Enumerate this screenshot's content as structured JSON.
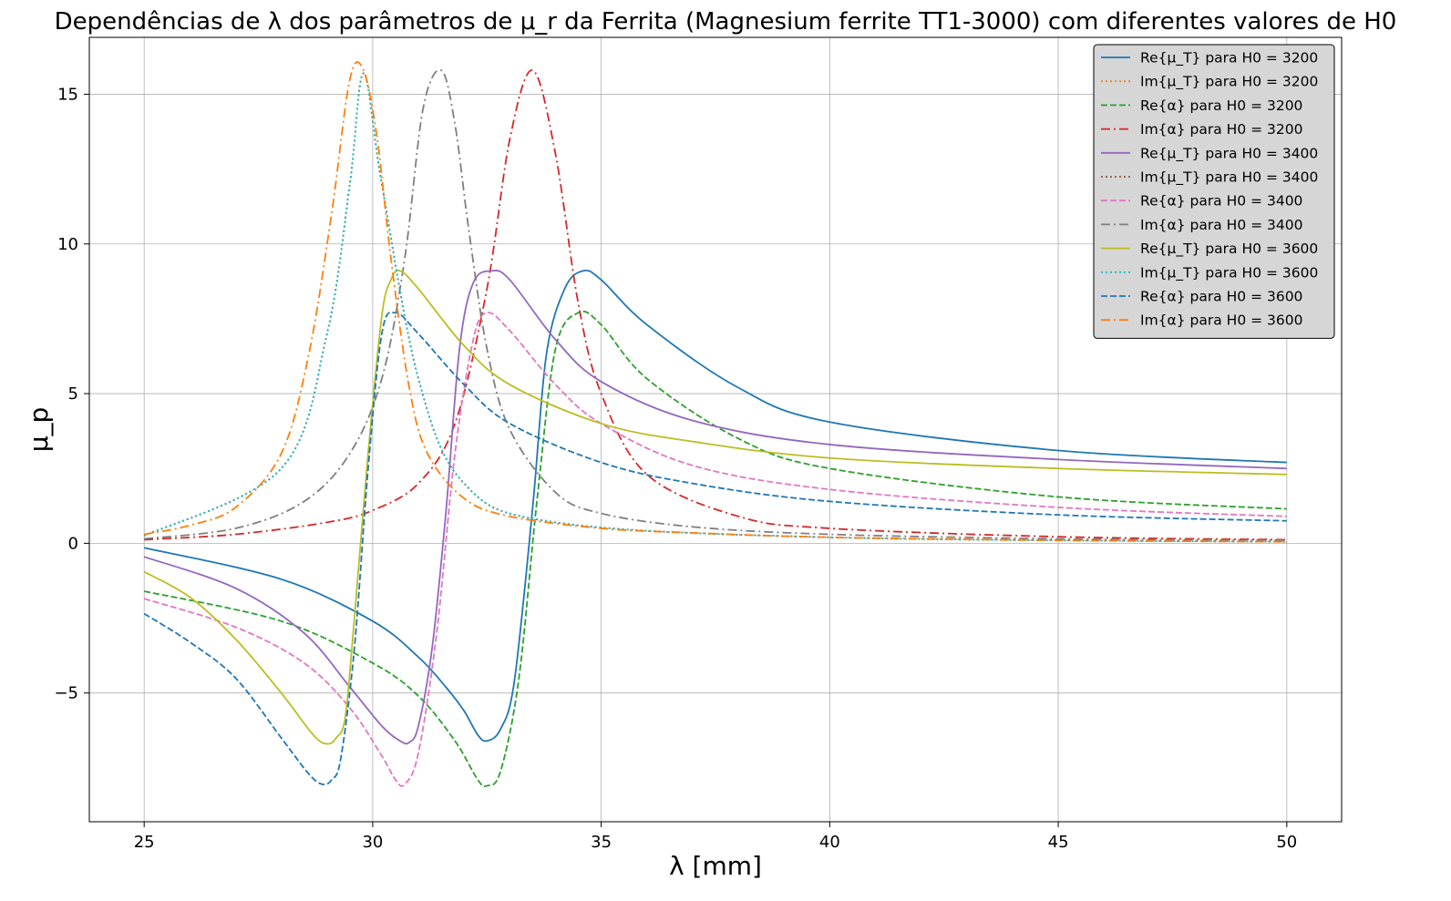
{
  "chart_data": {
    "type": "line",
    "title": "Dependências de λ dos parâmetros de μ_r da Ferrita (Magnesium ferrite TT1-3000) com diferentes valores de H0",
    "xlabel": "λ [mm]",
    "ylabel": "μ_p",
    "xlim": [
      23.8,
      51.2
    ],
    "ylim": [
      -9.3,
      16.9
    ],
    "xticks": [
      25,
      30,
      35,
      40,
      45,
      50
    ],
    "yticks": [
      -5,
      0,
      5,
      10,
      15
    ],
    "xtick_labels": [
      "25",
      "30",
      "35",
      "40",
      "45",
      "50"
    ],
    "ytick_labels": [
      "−5",
      "0",
      "5",
      "10",
      "15"
    ],
    "grid": true,
    "legend_position": "top-right",
    "series": [
      {
        "name": "Re{μ_T} para H0 = 3200",
        "color": "#1f77b4",
        "style": "solid",
        "x": [
          25,
          28,
          30,
          31,
          31.6,
          32,
          32.3,
          32.5,
          32.8,
          33.1,
          33.5,
          33.8,
          34.2,
          34.6,
          35,
          36,
          38,
          40,
          45,
          50
        ],
        "y": [
          -0.15,
          -1.2,
          -2.6,
          -3.8,
          -4.8,
          -5.6,
          -6.4,
          -6.6,
          -6.2,
          -4.6,
          1.2,
          6.3,
          8.5,
          9.1,
          8.8,
          7.3,
          5.2,
          4.05,
          3.1,
          2.7
        ]
      },
      {
        "name": "Im{μ_T} para H0 = 3200",
        "color": "#ff7f0e",
        "style": "dotted",
        "x": [
          25,
          28,
          29,
          29.5,
          29.8,
          30.2,
          31,
          32,
          34,
          40,
          50
        ],
        "y": [
          0.25,
          2.5,
          7.0,
          12.0,
          15.7,
          12.0,
          5.5,
          2.0,
          0.7,
          0.2,
          0.05
        ]
      },
      {
        "name": "Re{α} para H0 = 3200",
        "color": "#2ca02c",
        "style": "dashed",
        "x": [
          25,
          28,
          30,
          31,
          31.8,
          32.3,
          32.5,
          32.8,
          33.2,
          33.6,
          34,
          34.5,
          35,
          36,
          38,
          40,
          45,
          50
        ],
        "y": [
          -1.6,
          -2.6,
          -4.0,
          -5.1,
          -6.6,
          -7.9,
          -8.1,
          -7.6,
          -4.5,
          1.5,
          6.5,
          7.7,
          7.3,
          5.5,
          3.5,
          2.5,
          1.55,
          1.15
        ]
      },
      {
        "name": "Im{α} para H0 = 3200",
        "color": "#d62728",
        "style": "dashdot",
        "x": [
          25,
          27,
          29,
          30,
          31,
          31.8,
          32.5,
          33,
          33.5,
          34,
          34.5,
          35,
          36,
          38,
          40,
          45,
          50
        ],
        "y": [
          0.12,
          0.3,
          0.7,
          1.1,
          2.0,
          4.0,
          8.5,
          13.5,
          15.8,
          13.0,
          8.0,
          5.0,
          2.3,
          0.9,
          0.5,
          0.22,
          0.12
        ]
      },
      {
        "name": "Re{μ_T} para H0 = 3400",
        "color": "#9467bd",
        "style": "solid",
        "x": [
          25,
          27,
          28.5,
          29.5,
          30.2,
          30.6,
          30.8,
          31.0,
          31.3,
          31.6,
          31.9,
          32.2,
          32.6,
          33,
          34,
          35,
          37,
          40,
          45,
          50
        ],
        "y": [
          -0.45,
          -1.5,
          -3.0,
          -4.8,
          -6.1,
          -6.6,
          -6.65,
          -6.1,
          -3.5,
          1.0,
          6.5,
          8.7,
          9.1,
          8.8,
          6.8,
          5.4,
          4.1,
          3.3,
          2.8,
          2.5
        ]
      },
      {
        "name": "Im{μ_T} para H0 = 3400",
        "color": "#8c564b",
        "style": "dotted",
        "x": [
          25,
          28,
          29,
          29.5,
          29.8,
          30.2,
          31,
          32,
          34,
          40,
          50
        ],
        "y": [
          0.25,
          2.5,
          7.0,
          12.0,
          15.7,
          12.0,
          5.5,
          2.0,
          0.7,
          0.2,
          0.05
        ]
      },
      {
        "name": "Re{α} para H0 = 3400",
        "color": "#e377c2",
        "style": "dashed",
        "x": [
          25,
          27,
          28.5,
          29.5,
          30.2,
          30.5,
          30.7,
          31.0,
          31.4,
          31.8,
          32.2,
          32.5,
          33,
          34,
          35,
          37,
          40,
          45,
          50
        ],
        "y": [
          -1.85,
          -2.8,
          -4.0,
          -5.5,
          -7.1,
          -7.9,
          -8.05,
          -7.0,
          -3.0,
          3.0,
          6.8,
          7.7,
          7.1,
          5.3,
          4.0,
          2.6,
          1.8,
          1.2,
          0.9
        ]
      },
      {
        "name": "Im{α} para H0 = 3400",
        "color": "#7f7f7f",
        "style": "dashdot",
        "x": [
          25,
          27,
          28.5,
          29.5,
          30.2,
          30.7,
          31.1,
          31.5,
          31.8,
          32.1,
          32.5,
          33,
          34,
          35,
          37,
          40,
          45,
          50
        ],
        "y": [
          0.15,
          0.5,
          1.4,
          3.0,
          5.5,
          9.5,
          14.5,
          15.8,
          14.0,
          10.5,
          6.5,
          3.8,
          1.7,
          1.0,
          0.55,
          0.3,
          0.15,
          0.1
        ]
      },
      {
        "name": "Re{μ_T} para H0 = 3600",
        "color": "#bcbd22",
        "style": "solid",
        "x": [
          25,
          26,
          27,
          28,
          28.7,
          29.0,
          29.2,
          29.4,
          29.6,
          29.9,
          30.2,
          30.4,
          30.6,
          31,
          32,
          33,
          35,
          37,
          40,
          45,
          50
        ],
        "y": [
          -0.95,
          -1.8,
          -3.2,
          -5.0,
          -6.4,
          -6.7,
          -6.5,
          -5.8,
          -2.5,
          3.0,
          7.6,
          8.8,
          9.1,
          8.5,
          6.6,
          5.3,
          4.0,
          3.4,
          2.85,
          2.5,
          2.3
        ]
      },
      {
        "name": "Im{μ_T} para H0 = 3600",
        "color": "#17becf",
        "style": "dotted",
        "x": [
          25,
          28,
          29,
          29.5,
          29.8,
          30.2,
          31,
          32,
          34,
          40,
          50
        ],
        "y": [
          0.25,
          2.5,
          7.0,
          12.0,
          15.7,
          12.0,
          5.5,
          2.0,
          0.7,
          0.2,
          0.05
        ]
      },
      {
        "name": "Re{α} para H0 = 3600",
        "color": "#1f77b4",
        "style": "dashed",
        "x": [
          25,
          26,
          27,
          28,
          28.6,
          28.9,
          29.1,
          29.3,
          29.6,
          29.9,
          30.2,
          30.5,
          31,
          32,
          33,
          35,
          37,
          40,
          45,
          50
        ],
        "y": [
          -2.35,
          -3.3,
          -4.5,
          -6.5,
          -7.7,
          -8.05,
          -7.9,
          -7.2,
          -3.5,
          2.5,
          7.0,
          7.7,
          7.0,
          5.3,
          4.0,
          2.7,
          2.0,
          1.4,
          0.95,
          0.75
        ]
      },
      {
        "name": "Im{α} para H0 = 3600",
        "color": "#ff7f0e",
        "style": "dashdot",
        "x": [
          25,
          26,
          27,
          28,
          28.6,
          29.1,
          29.5,
          29.8,
          30.1,
          30.4,
          30.8,
          31.2,
          32,
          33,
          35,
          37,
          40,
          45,
          50
        ],
        "y": [
          0.3,
          0.6,
          1.2,
          3.0,
          6.3,
          11.0,
          15.5,
          15.8,
          13.5,
          9.5,
          5.2,
          3.0,
          1.5,
          0.9,
          0.5,
          0.35,
          0.2,
          0.1,
          0.05
        ]
      }
    ]
  }
}
